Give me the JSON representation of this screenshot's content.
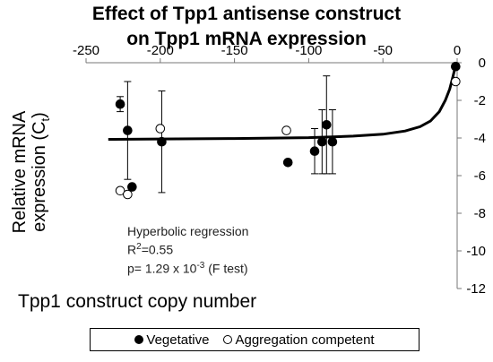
{
  "chart_data": {
    "type": "scatter",
    "title_lines": [
      "Effect of Tpp1 antisense construct",
      "on Tpp1 mRNA expression"
    ],
    "xlabel": "Tpp1 construct copy number",
    "ylabel_lines": [
      "Relative mRNA",
      "expression (C",
      "t",
      ")"
    ],
    "xlim": [
      -250,
      0
    ],
    "ylim": [
      -12,
      0
    ],
    "x_ticks": [
      -250,
      -200,
      -150,
      -100,
      -50,
      0
    ],
    "x_tick_labels": [
      "-250",
      "-200",
      "-150",
      "-100",
      "-50",
      "0"
    ],
    "y_ticks": [
      0,
      -2,
      -4,
      -6,
      -8,
      -10,
      -12
    ],
    "y_tick_labels": [
      "0",
      "-2",
      "-4",
      "-6",
      "-8",
      "-10",
      "-12"
    ],
    "series": [
      {
        "name": "Vegetative",
        "marker": "filled",
        "points": [
          {
            "x": -227,
            "y": -2.2,
            "err": 0.4
          },
          {
            "x": -222,
            "y": -3.6,
            "err": 2.6
          },
          {
            "x": -219,
            "y": -6.6
          },
          {
            "x": -199,
            "y": -4.2,
            "err": 2.7
          },
          {
            "x": -114,
            "y": -5.3
          },
          {
            "x": -96,
            "y": -4.7,
            "err": 1.2
          },
          {
            "x": -91,
            "y": -4.2,
            "err": 1.7
          },
          {
            "x": -88,
            "y": -3.3,
            "err": 2.6
          },
          {
            "x": -84,
            "y": -4.2,
            "err": 1.7
          },
          {
            "x": -1,
            "y": -0.2
          }
        ]
      },
      {
        "name": "Aggregation competent",
        "marker": "open",
        "points": [
          {
            "x": -227,
            "y": -6.8
          },
          {
            "x": -222,
            "y": -7.0
          },
          {
            "x": -200,
            "y": -3.5
          },
          {
            "x": -115,
            "y": -3.6
          },
          {
            "x": -1,
            "y": -1.0
          }
        ]
      }
    ],
    "fit": {
      "name": "Hyperbolic regression",
      "plateau": -4.1,
      "curve_points": [
        [
          -235,
          -4.07
        ],
        [
          -200,
          -4.05
        ],
        [
          -150,
          -4.03
        ],
        [
          -100,
          -3.98
        ],
        [
          -70,
          -3.9
        ],
        [
          -50,
          -3.8
        ],
        [
          -35,
          -3.63
        ],
        [
          -25,
          -3.4
        ],
        [
          -18,
          -3.1
        ],
        [
          -12,
          -2.6
        ],
        [
          -8,
          -2.0
        ],
        [
          -5,
          -1.4
        ],
        [
          -3,
          -0.8
        ],
        [
          -1.5,
          -0.3
        ],
        [
          -1,
          -0.1
        ]
      ]
    },
    "annotation": {
      "line1": "Hyperbolic regression",
      "r2_prefix": "R",
      "r2_sup": "2",
      "r2_suffix": "=0.55",
      "p_prefix": "p= 1.29 x 10",
      "p_sup": "-3",
      "p_suffix": " (F test)"
    },
    "legend": {
      "position": "bottom",
      "items": [
        "Vegetative",
        "Aggregation competent"
      ]
    },
    "grid": false
  }
}
